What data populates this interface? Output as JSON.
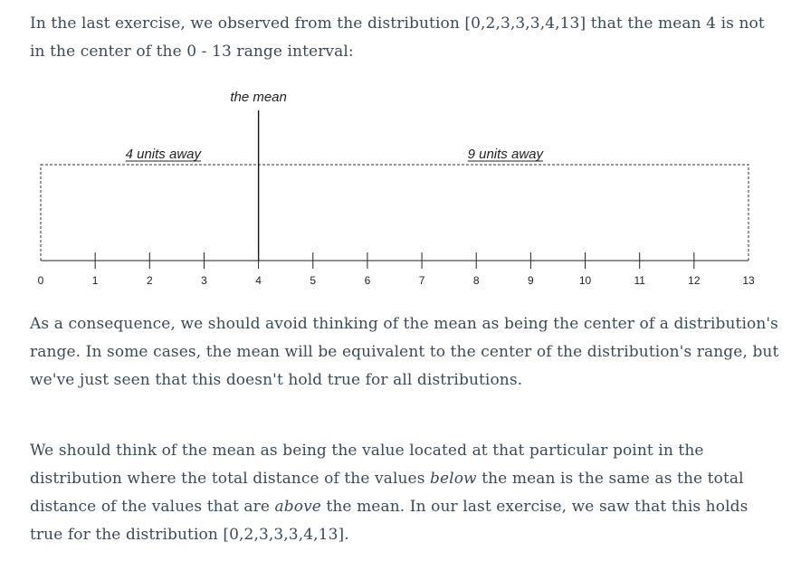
{
  "intro": {
    "part1": "In the last exercise, we observed from the distribution [0,2,3,3,3,4,13] that the mean 4 is not in the center of the 0 - 13 range interval:"
  },
  "figure": {
    "mean_label": "the mean",
    "left_label": "4 units away",
    "right_label": "9 units away",
    "mean_value": 4,
    "range": [
      0,
      13
    ],
    "ticks": [
      "0",
      "1",
      "2",
      "3",
      "4",
      "5",
      "6",
      "7",
      "8",
      "9",
      "10",
      "11",
      "12",
      "13"
    ]
  },
  "consequence": {
    "text": "As a consequence, we should avoid thinking of the mean as being the center of a distribution's range. In some cases, the mean will be equivalent to the center of the distribution's range, but we've just seen that this doesn't hold true for all distributions."
  },
  "think": {
    "part1": "We should think of the mean as being the value located at that particular point in the distribution where the total distance of the values ",
    "below": "below",
    "part2": " the mean is the same as the total distance of the values that are ",
    "above": "above",
    "part3": " the mean. In our last exercise, we saw that this holds true for the distribution [0,2,3,3,3,4,13]."
  }
}
